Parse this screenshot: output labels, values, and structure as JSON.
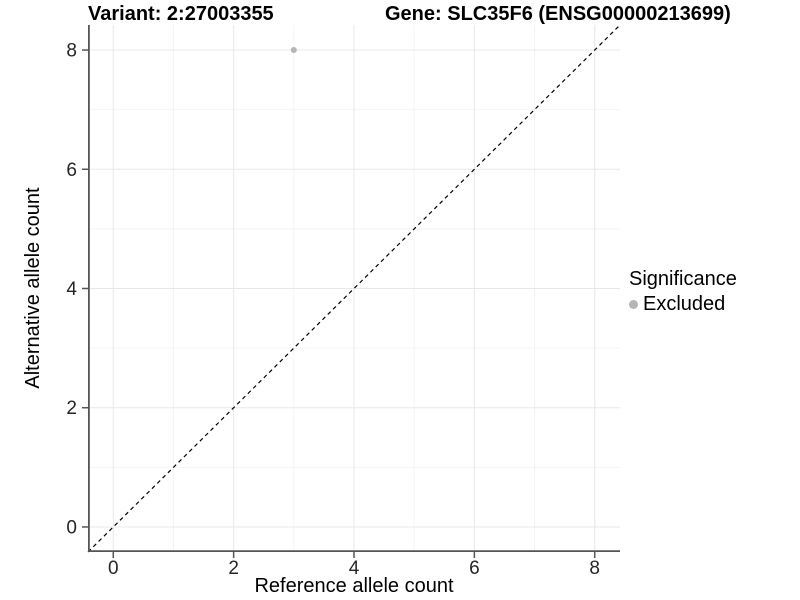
{
  "titles": {
    "variant": "Variant: 2:27003355",
    "gene": "Gene: SLC35F6 (ENSG00000213699)"
  },
  "legend": {
    "title": "Significance",
    "items": [
      {
        "label": "Excluded",
        "color": "#b5b5b5"
      }
    ]
  },
  "colors": {
    "background": "#ffffff",
    "axis": "#555555",
    "tick_label": "#262626",
    "grid_major": "#e8e8e8",
    "grid_minor": "#f4f4f4",
    "reference_line": "#000000",
    "point": "#b5b5b5"
  },
  "chart_data": {
    "type": "scatter",
    "title": "Variant: 2:27003355 | Gene: SLC35F6 (ENSG00000213699)",
    "xlabel": "Reference allele count",
    "ylabel": "Alternative allele count",
    "xlim": [
      -0.42,
      8.42
    ],
    "ylim": [
      -0.42,
      8.42
    ],
    "x_ticks": [
      0,
      2,
      4,
      6,
      8
    ],
    "y_ticks": [
      0,
      2,
      4,
      6,
      8
    ],
    "x_minor_ticks": [
      1,
      3,
      5,
      7
    ],
    "y_minor_ticks": [
      1,
      3,
      5,
      7
    ],
    "grid": true,
    "legend_position": "right",
    "series": [
      {
        "name": "Excluded",
        "color": "#b5b5b5",
        "points": [
          {
            "x": 3,
            "y": 8
          }
        ]
      }
    ],
    "reference_line": {
      "type": "identity",
      "slope": 1,
      "intercept": 0,
      "style": "dashed",
      "color": "#000000"
    }
  }
}
